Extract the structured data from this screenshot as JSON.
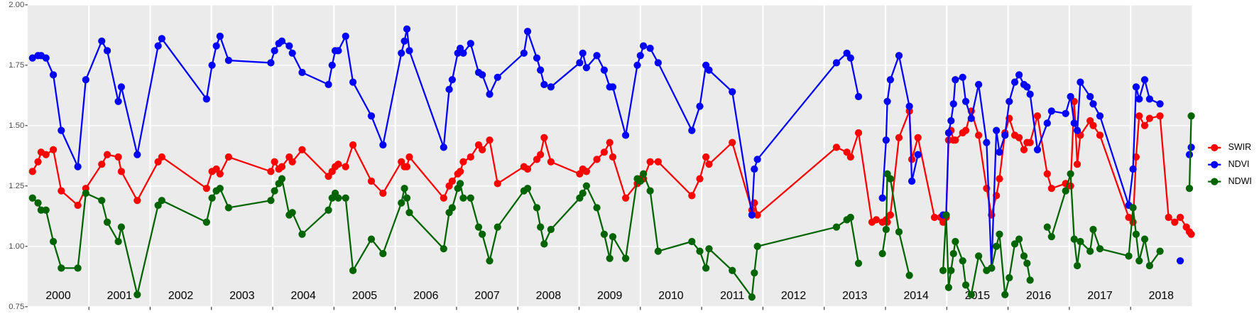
{
  "chart_data": {
    "type": "line",
    "xlim": [
      2000,
      2019
    ],
    "ylim": [
      0.75,
      2.0
    ],
    "yticks": [
      0.75,
      {
        "value": 1.0,
        "label": "1.00"
      },
      1.25,
      {
        "value": 1.5,
        "label": "1.50"
      },
      1.75,
      {
        "value": 2.0,
        "label": "2.00"
      }
    ],
    "xticks": [
      {
        "value": 2000.5,
        "label": "2000"
      },
      {
        "value": 2001.5,
        "label": "2001"
      },
      {
        "value": 2002.5,
        "label": "2002"
      },
      {
        "value": 2003.5,
        "label": "2003"
      },
      {
        "value": 2004.5,
        "label": "2004"
      },
      {
        "value": 2005.5,
        "label": "2005"
      },
      {
        "value": 2006.5,
        "label": "2006"
      },
      {
        "value": 2007.5,
        "label": "2007"
      },
      {
        "value": 2008.5,
        "label": "2008"
      },
      {
        "value": 2009.5,
        "label": "2009"
      },
      {
        "value": 2010.5,
        "label": "2010"
      },
      {
        "value": 2011.5,
        "label": "2011"
      },
      {
        "value": 2012.5,
        "label": "2012"
      },
      {
        "value": 2013.5,
        "label": "2013"
      },
      {
        "value": 2014.5,
        "label": "2014"
      },
      {
        "value": 2015.5,
        "label": "2015"
      },
      {
        "value": 2016.5,
        "label": "2016"
      },
      {
        "value": 2017.5,
        "label": "2017"
      },
      {
        "value": 2018.5,
        "label": "2018"
      }
    ],
    "x_breaks": [
      2001,
      2002,
      2003,
      2004,
      2005,
      2006,
      2007,
      2008,
      2009,
      2010,
      2011,
      2012,
      2013,
      2014,
      2015,
      2016,
      2017,
      2018
    ],
    "grid": true,
    "legend": "right",
    "x": [
      2000.08,
      2000.17,
      2000.22,
      2000.3,
      2000.42,
      2000.55,
      2000.82,
      2000.95,
      2001.21,
      2001.3,
      2001.48,
      2001.53,
      2001.79,
      2002.13,
      2002.19,
      2002.92,
      2003.01,
      2003.08,
      2003.14,
      2003.28,
      2003.97,
      2004.03,
      2004.1,
      2004.15,
      2004.27,
      2004.32,
      2004.48,
      2004.91,
      2004.97,
      2005.02,
      2005.07,
      2005.19,
      2005.31,
      2005.61,
      2005.8,
      2006.1,
      2006.15,
      2006.19,
      2006.23,
      2006.79,
      2006.88,
      2006.93,
      2007.02,
      2007.06,
      2007.11,
      2007.23,
      2007.36,
      2007.42,
      2007.54,
      2007.67,
      2008.1,
      2008.16,
      2008.31,
      2008.37,
      2008.43,
      2008.54,
      2009.01,
      2009.06,
      2009.12,
      2009.29,
      2009.41,
      2009.5,
      2009.55,
      2009.76,
      2009.95,
      2010.0,
      2010.05,
      2010.16,
      2010.29,
      2010.84,
      2010.97,
      2011.07,
      2011.12,
      2011.5,
      2011.82,
      2011.86,
      2011.91,
      2013.2,
      2013.37,
      2013.43,
      2013.56,
      2013.78,
      2013.85,
      2013.95,
      2014.01,
      2014.03,
      2014.08,
      2014.22,
      2014.39,
      2014.43,
      2014.53,
      2014.8,
      2014.9,
      2014.94,
      2014.99,
      2015.03,
      2015.07,
      2015.11,
      2015.14,
      2015.26,
      2015.31,
      2015.4,
      2015.52,
      2015.65,
      2015.73,
      2015.81,
      2015.86,
      2015.95,
      2016.02,
      2016.11,
      2016.18,
      2016.26,
      2016.31,
      2016.36,
      2016.48,
      2016.64,
      2016.71,
      2016.94,
      2017.02,
      2017.08,
      2017.13,
      2017.18,
      2017.34,
      2017.39,
      2017.5,
      2017.97,
      2018.04,
      2018.09,
      2018.14,
      2018.23,
      2018.31,
      2018.48,
      2018.62,
      2018.72,
      2018.81,
      2018.91,
      2018.96,
      2018.99
    ],
    "series": [
      {
        "name": "SWIR",
        "color": "#ff0000",
        "values": [
          1.31,
          1.35,
          1.39,
          1.38,
          1.4,
          1.23,
          1.17,
          1.24,
          1.34,
          1.38,
          1.37,
          1.31,
          1.19,
          1.35,
          1.37,
          1.24,
          1.31,
          1.32,
          1.3,
          1.37,
          1.31,
          1.35,
          1.32,
          1.33,
          1.37,
          1.35,
          1.4,
          1.29,
          1.31,
          1.33,
          1.34,
          1.33,
          1.42,
          1.27,
          1.22,
          1.35,
          1.33,
          1.33,
          1.37,
          1.2,
          1.25,
          1.27,
          1.3,
          1.31,
          1.35,
          1.37,
          1.42,
          1.4,
          1.44,
          1.26,
          1.33,
          1.32,
          1.36,
          1.38,
          1.45,
          1.35,
          1.3,
          1.32,
          1.31,
          1.36,
          1.39,
          1.43,
          1.37,
          1.2,
          1.26,
          1.28,
          1.28,
          1.35,
          1.35,
          1.21,
          1.28,
          1.37,
          1.34,
          1.43,
          1.15,
          1.18,
          1.13,
          1.41,
          1.39,
          1.37,
          1.47,
          1.1,
          1.11,
          1.1,
          1.11,
          1.1,
          1.13,
          1.45,
          1.56,
          1.36,
          1.45,
          1.12,
          1.12,
          1.1,
          1.12,
          1.44,
          1.48,
          1.44,
          1.44,
          1.47,
          1.48,
          1.56,
          1.46,
          1.24,
          1.13,
          1.21,
          1.28,
          1.47,
          1.53,
          1.46,
          1.45,
          1.4,
          1.43,
          1.43,
          1.54,
          1.3,
          1.24,
          1.26,
          1.25,
          1.6,
          1.34,
          1.46,
          1.52,
          1.5,
          1.46,
          1.12,
          1.1,
          1.37,
          1.54,
          1.5,
          1.53,
          1.54,
          1.12,
          1.1,
          1.12,
          1.08,
          1.06,
          1.05
        ]
      },
      {
        "name": "NDVI",
        "color": "#0000ff",
        "values": [
          1.78,
          1.79,
          1.79,
          1.78,
          1.71,
          1.48,
          1.33,
          1.69,
          1.85,
          1.81,
          1.6,
          1.66,
          1.38,
          1.83,
          1.86,
          1.61,
          1.75,
          1.83,
          1.87,
          1.77,
          1.76,
          1.81,
          1.84,
          1.85,
          1.83,
          1.8,
          1.72,
          1.67,
          1.75,
          1.81,
          1.81,
          1.87,
          1.68,
          1.54,
          1.42,
          1.8,
          1.85,
          1.9,
          1.81,
          1.41,
          1.65,
          1.69,
          1.8,
          1.82,
          1.8,
          1.84,
          1.72,
          1.71,
          1.63,
          1.7,
          1.8,
          1.89,
          1.78,
          1.73,
          1.67,
          1.66,
          1.76,
          1.8,
          1.74,
          1.79,
          1.73,
          1.66,
          1.66,
          1.46,
          1.75,
          1.79,
          1.83,
          1.82,
          1.76,
          1.48,
          1.58,
          1.75,
          1.73,
          1.64,
          1.13,
          1.32,
          1.36,
          1.76,
          1.8,
          1.78,
          1.62,
          null,
          null,
          1.2,
          1.44,
          1.6,
          1.69,
          1.79,
          1.58,
          1.27,
          1.38,
          null,
          null,
          1.13,
          1.13,
          1.47,
          1.52,
          1.59,
          1.69,
          1.7,
          1.6,
          1.53,
          1.67,
          1.43,
          0.91,
          1.48,
          1.39,
          1.46,
          1.6,
          1.68,
          1.71,
          1.67,
          1.66,
          1.63,
          1.4,
          1.51,
          1.56,
          1.55,
          1.62,
          1.51,
          1.48,
          1.68,
          1.62,
          1.59,
          1.54,
          1.17,
          1.32,
          1.66,
          1.61,
          1.69,
          1.61,
          1.59,
          null,
          null,
          0.94,
          null,
          1.38,
          1.41
        ]
      },
      {
        "name": "NDWI",
        "color": "#006400",
        "values": [
          1.2,
          1.18,
          1.15,
          1.15,
          1.02,
          0.91,
          0.91,
          1.22,
          1.19,
          1.1,
          1.02,
          1.08,
          0.8,
          1.17,
          1.19,
          1.1,
          1.2,
          1.23,
          1.24,
          1.16,
          1.19,
          1.23,
          1.26,
          1.28,
          1.13,
          1.14,
          1.05,
          1.15,
          1.2,
          1.22,
          1.2,
          1.2,
          0.9,
          1.03,
          0.97,
          1.18,
          1.24,
          1.2,
          1.14,
          0.99,
          1.14,
          1.16,
          1.24,
          1.26,
          1.2,
          1.2,
          1.08,
          1.05,
          0.94,
          1.08,
          1.23,
          1.24,
          1.16,
          1.08,
          1.01,
          1.07,
          1.2,
          1.22,
          1.25,
          1.16,
          1.05,
          0.95,
          1.04,
          0.95,
          1.28,
          1.27,
          1.3,
          1.23,
          0.98,
          1.02,
          0.98,
          0.91,
          0.99,
          0.9,
          0.79,
          0.89,
          1.0,
          1.08,
          1.11,
          1.12,
          0.93,
          null,
          null,
          0.97,
          1.07,
          1.3,
          1.28,
          1.06,
          0.88,
          null,
          null,
          null,
          null,
          0.9,
          1.13,
          0.83,
          0.9,
          0.97,
          1.02,
          0.94,
          0.84,
          0.8,
          0.96,
          0.9,
          0.91,
          1.0,
          1.05,
          0.8,
          0.87,
          1.01,
          1.03,
          0.96,
          0.93,
          0.86,
          null,
          1.08,
          1.04,
          1.23,
          1.3,
          1.03,
          0.92,
          1.02,
          0.98,
          1.07,
          0.99,
          0.96,
          1.16,
          1.05,
          0.94,
          1.03,
          0.92,
          0.98,
          null,
          null,
          null,
          null,
          1.24,
          1.54
        ]
      }
    ]
  }
}
